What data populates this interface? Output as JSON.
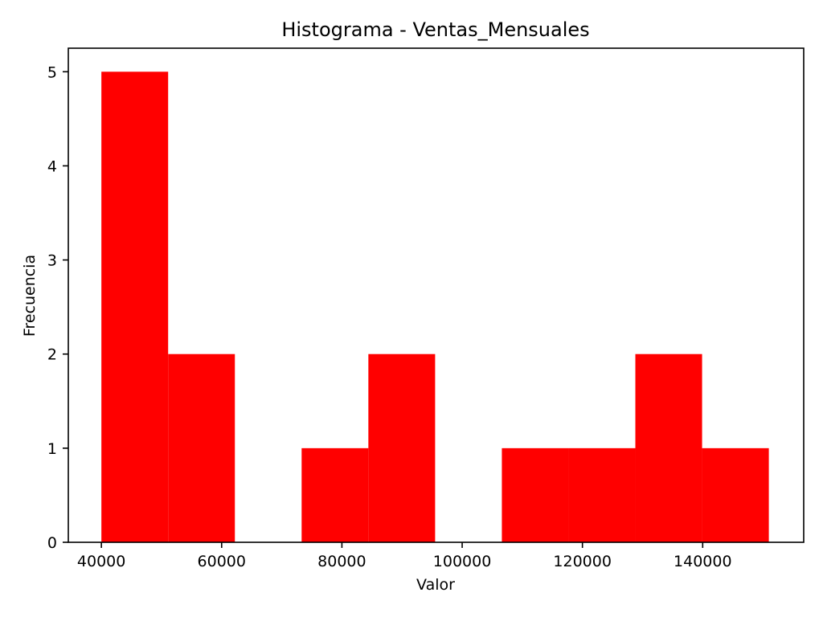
{
  "chart_data": {
    "type": "bar",
    "title": "Histograma - Ventas_Mensuales",
    "xlabel": "Valor",
    "ylabel": "Frecuencia",
    "bar_color": "#ff0000",
    "xlim": [
      34500,
      156800
    ],
    "ylim": [
      0,
      5.25
    ],
    "x_ticks": [
      40000,
      60000,
      80000,
      100000,
      120000,
      140000
    ],
    "y_ticks": [
      0,
      1,
      2,
      3,
      4,
      5
    ],
    "bins": [
      {
        "x0": 40000,
        "x1": 51100,
        "count": 5
      },
      {
        "x0": 51100,
        "x1": 62200,
        "count": 2
      },
      {
        "x0": 62200,
        "x1": 73300,
        "count": 0
      },
      {
        "x0": 73300,
        "x1": 84400,
        "count": 1
      },
      {
        "x0": 84400,
        "x1": 95500,
        "count": 2
      },
      {
        "x0": 95500,
        "x1": 106600,
        "count": 0
      },
      {
        "x0": 106600,
        "x1": 117700,
        "count": 1
      },
      {
        "x0": 117700,
        "x1": 128800,
        "count": 1
      },
      {
        "x0": 128800,
        "x1": 139900,
        "count": 2
      },
      {
        "x0": 139900,
        "x1": 151000,
        "count": 1
      }
    ]
  }
}
